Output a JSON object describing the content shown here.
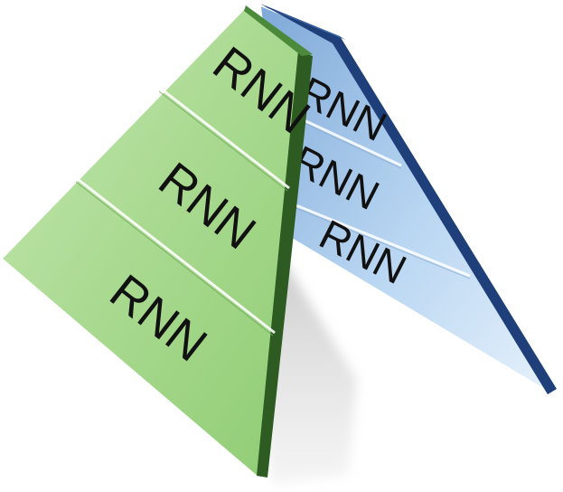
{
  "diagram": {
    "front_stack": {
      "color": "#a8d98f",
      "edge_color": "#2e5b22",
      "layers": [
        {
          "label": "RNN"
        },
        {
          "label": "RNN"
        },
        {
          "label": "RNN"
        }
      ]
    },
    "back_stack": {
      "color": "#b9d6f2",
      "edge_color": "#1e3f7a",
      "layers": [
        {
          "label": "RNN"
        },
        {
          "label": "RNN"
        },
        {
          "label": "RNN"
        }
      ]
    }
  }
}
